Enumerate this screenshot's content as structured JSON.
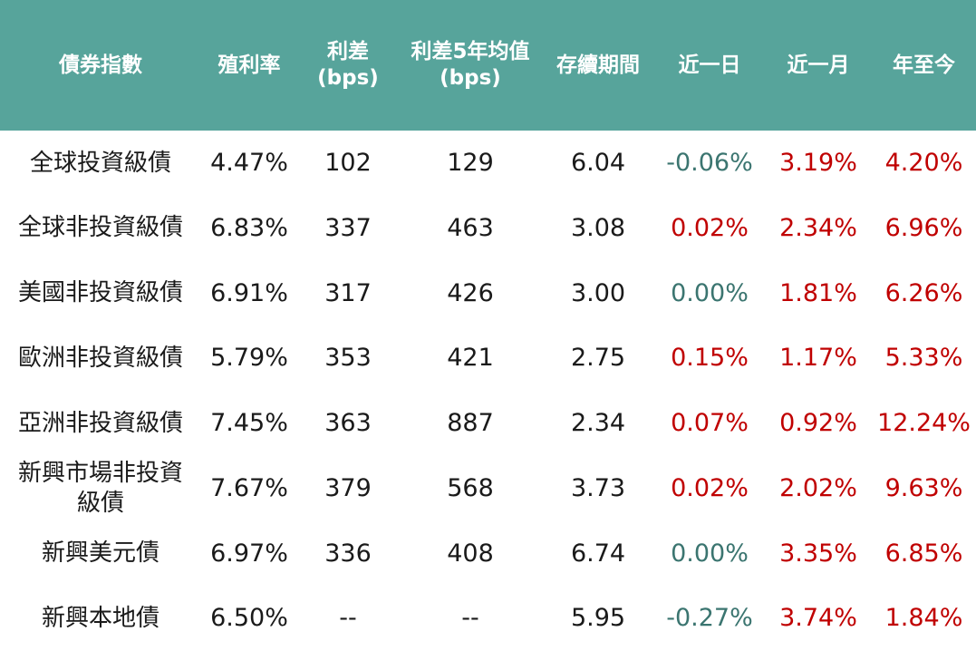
{
  "colors": {
    "header_bg": "#57a49b",
    "header_text": "#ffffff",
    "body_text": "#1a1a1a",
    "positive_change_red": "#c00000",
    "nonpositive_change_teal": "#3b7570"
  },
  "chart_data": {
    "type": "table",
    "title": "",
    "columns": [
      "債券指數",
      "殖利率",
      "利差(bps)",
      "利差5年均值\n(bps)",
      "存續期間",
      "近一日",
      "近一月",
      "年至今"
    ],
    "change_columns_start_index": 5,
    "rows": [
      [
        "全球投資級債",
        "4.47%",
        "102",
        "129",
        "6.04",
        "-0.06%",
        "3.19%",
        "4.20%"
      ],
      [
        "全球非投資級債",
        "6.83%",
        "337",
        "463",
        "3.08",
        "0.02%",
        "2.34%",
        "6.96%"
      ],
      [
        "美國非投資級債",
        "6.91%",
        "317",
        "426",
        "3.00",
        "0.00%",
        "1.81%",
        "6.26%"
      ],
      [
        "歐洲非投資級債",
        "5.79%",
        "353",
        "421",
        "2.75",
        "0.15%",
        "1.17%",
        "5.33%"
      ],
      [
        "亞洲非投資級債",
        "7.45%",
        "363",
        "887",
        "2.34",
        "0.07%",
        "0.92%",
        "12.24%"
      ],
      [
        "新興市場非投資級債",
        "7.67%",
        "379",
        "568",
        "3.73",
        "0.02%",
        "2.02%",
        "9.63%"
      ],
      [
        "新興美元債",
        "6.97%",
        "336",
        "408",
        "6.74",
        "0.00%",
        "3.35%",
        "6.85%"
      ],
      [
        "新興本地債",
        "6.50%",
        "--",
        "--",
        "5.95",
        "-0.27%",
        "3.74%",
        "1.84%"
      ]
    ],
    "color_rule": "change columns: value > 0 red, value <= 0 teal"
  }
}
